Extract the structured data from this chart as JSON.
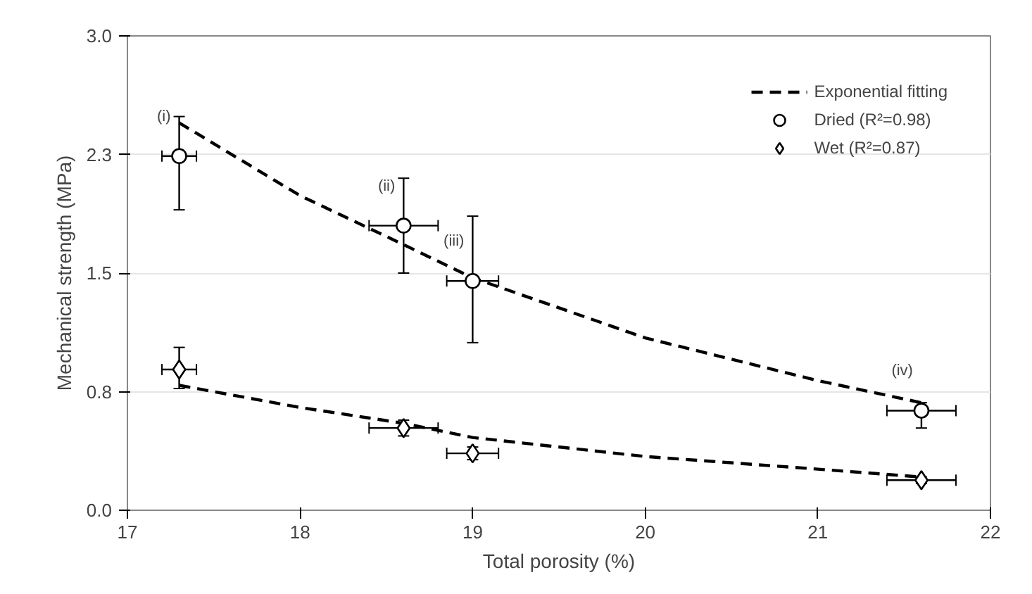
{
  "chart_data": {
    "type": "scatter",
    "xlabel": "Total porosity (%)",
    "ylabel": "Mechanical strength (MPa)",
    "xlim": [
      17,
      22
    ],
    "ylim": [
      0,
      3
    ],
    "xticks": [
      17,
      18,
      19,
      20,
      21,
      22
    ],
    "yticks": [
      {
        "value": 0,
        "label": "0.0"
      },
      {
        "value": 0.75,
        "label": "0.8"
      },
      {
        "value": 1.5,
        "label": "1.5"
      },
      {
        "value": 2.25,
        "label": "2.3"
      },
      {
        "value": 3,
        "label": "3.0"
      }
    ],
    "grid": "y",
    "legend": "top right",
    "series": [
      {
        "type": "line",
        "name": "Exponential fitting",
        "color": "#000000",
        "line_style": "dashed",
        "x": [
          17.3,
          18,
          18.6,
          19,
          20,
          21,
          21.6
        ],
        "values": [
          2.45,
          1.99,
          1.68,
          1.47,
          1.09,
          0.82,
          0.68
        ]
      },
      {
        "type": "line",
        "color": "#000000",
        "line_style": "dashed",
        "x": [
          17.3,
          18,
          18.6,
          19,
          20,
          21,
          21.6
        ],
        "values": [
          0.79,
          0.65,
          0.55,
          0.46,
          0.34,
          0.26,
          0.21
        ]
      },
      {
        "name": "Dried (R²=0.98)",
        "color": "#000000",
        "marker": "circle",
        "x": [
          17.3,
          18.6,
          19.0,
          21.6
        ],
        "values": [
          2.24,
          1.8,
          1.45,
          0.63
        ],
        "errors": [
          [
            1.9,
            2.49
          ],
          [
            1.5,
            2.1
          ],
          [
            1.06,
            1.86
          ],
          [
            0.52,
            0.68
          ]
        ],
        "xerrors": [
          [
            17.2,
            17.4
          ],
          [
            18.4,
            18.8
          ],
          [
            18.85,
            19.15
          ],
          [
            21.4,
            21.8
          ]
        ]
      },
      {
        "name": "Wet (R²=0.87)",
        "color": "#000000",
        "marker": "diamond",
        "x": [
          17.3,
          18.6,
          19.0,
          21.6
        ],
        "values": [
          0.89,
          0.52,
          0.36,
          0.19
        ],
        "errors": [
          [
            0.77,
            1.03
          ],
          [
            0.47,
            0.57
          ],
          [
            0.32,
            0.4
          ],
          [
            0.17,
            0.21
          ]
        ],
        "xerrors": [
          [
            17.2,
            17.4
          ],
          [
            18.4,
            18.8
          ],
          [
            18.85,
            19.15
          ],
          [
            21.4,
            21.8
          ]
        ]
      }
    ],
    "annotations": [
      {
        "text": "(i)",
        "x": 17.3,
        "y": 2.24
      },
      {
        "text": "(ii)",
        "x": 18.6,
        "y": 1.8
      },
      {
        "text": "(iii)",
        "x": 19.0,
        "y": 1.45
      },
      {
        "text": "(iv)",
        "x": 21.6,
        "y": 0.63
      }
    ]
  }
}
